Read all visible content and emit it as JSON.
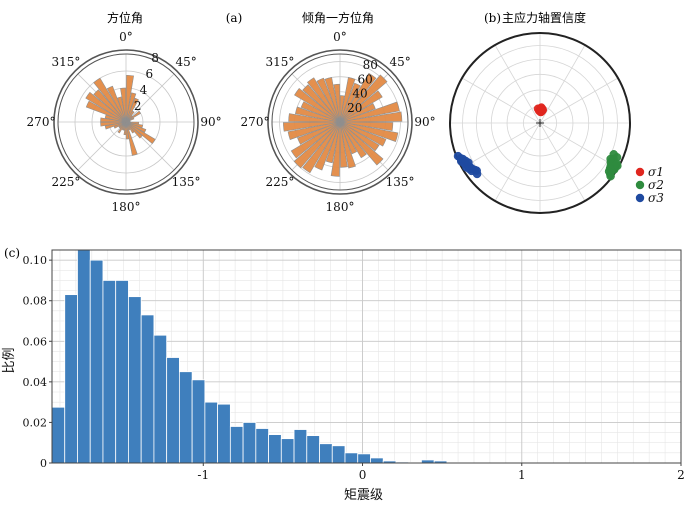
{
  "panels": {
    "a": {
      "label": "(a)",
      "left_title": "方位角",
      "right_title": "倾角一方位角"
    },
    "b": {
      "label": "(b)",
      "title": "主应力轴置信度"
    },
    "c": {
      "label": "(c)"
    }
  },
  "chart_data": [
    {
      "id": "azimuth-rose",
      "type": "bar",
      "subtype": "polar-rose",
      "title": "方位角",
      "angle_ticks": [
        "0°",
        "45°",
        "90°",
        "135°",
        "180°",
        "225°",
        "270°",
        "315°"
      ],
      "radial_ticks": [
        2,
        4,
        6,
        8
      ],
      "rlim": [
        0,
        8
      ],
      "bin_width_deg": 10,
      "bins_deg": [
        0,
        10,
        20,
        30,
        40,
        50,
        60,
        70,
        80,
        90,
        100,
        110,
        120,
        130,
        140,
        150,
        160,
        170,
        180,
        190,
        200,
        210,
        220,
        230,
        240,
        250,
        260,
        270,
        280,
        290,
        300,
        310,
        320,
        330,
        340,
        350
      ],
      "values": [
        5.5,
        3.5,
        3.0,
        1.5,
        1.0,
        2.0,
        1.0,
        0.5,
        0.5,
        1.5,
        2.0,
        2.5,
        4.0,
        2.5,
        1.5,
        1.0,
        4.0,
        2.0,
        1.5,
        1.0,
        1.0,
        1.5,
        1.0,
        1.0,
        1.5,
        2.5,
        3.0,
        3.0,
        2.5,
        5.0,
        5.5,
        5.0,
        6.0,
        4.5,
        3.0,
        4.0
      ],
      "bar_color": "#e38a45",
      "grid": true
    },
    {
      "id": "dip-azimuth-rose",
      "type": "bar",
      "subtype": "polar-rose",
      "title": "倾角一方位角",
      "angle_ticks": [
        "0°",
        "45°",
        "90°",
        "135°",
        "180°",
        "225°",
        "270°",
        "315°"
      ],
      "radial_ticks": [
        20,
        40,
        60,
        80
      ],
      "rlim": [
        0,
        90
      ],
      "bin_width_deg": 10,
      "bins_deg": [
        0,
        10,
        20,
        30,
        40,
        50,
        60,
        70,
        80,
        90,
        100,
        110,
        120,
        130,
        140,
        150,
        160,
        170,
        180,
        190,
        200,
        210,
        220,
        230,
        240,
        250,
        260,
        270,
        280,
        290,
        300,
        310,
        320,
        330,
        340,
        350
      ],
      "values": [
        35,
        60,
        55,
        75,
        82,
        65,
        50,
        80,
        82,
        70,
        78,
        65,
        60,
        75,
        55,
        45,
        62,
        60,
        72,
        55,
        68,
        78,
        80,
        75,
        60,
        70,
        75,
        68,
        60,
        55,
        70,
        65,
        68,
        62,
        60,
        50
      ],
      "bar_color": "#e38a45",
      "grid": true
    },
    {
      "id": "principal-stress-confidence",
      "type": "scatter",
      "subtype": "stereonet",
      "title": "主应力轴置信度",
      "legend_placement": "right",
      "series": [
        {
          "name": "σ1",
          "color": "#e0261f",
          "points": [
            [
              0,
              78
            ],
            [
              4,
              78
            ],
            [
              8,
              78
            ],
            [
              10,
              79
            ],
            [
              2,
              80
            ],
            [
              6,
              80
            ],
            [
              12,
              78
            ],
            [
              356,
              79
            ],
            [
              352,
              77
            ],
            [
              5,
              76
            ],
            [
              9,
              77
            ],
            [
              3,
              77
            ]
          ]
        },
        {
          "name": "σ2",
          "color": "#2e8b3e",
          "points": [
            [
              122,
              3
            ],
            [
              124,
              5
            ],
            [
              120,
              6
            ],
            [
              118,
              4
            ],
            [
              126,
              4
            ],
            [
              121,
              9
            ],
            [
              119,
              11
            ],
            [
              116,
              10
            ],
            [
              123,
              8
            ],
            [
              114,
              7
            ],
            [
              117,
              13
            ],
            [
              125,
              7
            ],
            [
              113,
              12
            ],
            [
              127,
              2
            ],
            [
              119,
              2
            ]
          ]
        },
        {
          "name": "σ3",
          "color": "#1f4aa0",
          "points": [
            [
              244,
              3
            ],
            [
              242,
              5
            ],
            [
              240,
              7
            ],
            [
              238,
              9
            ],
            [
              236,
              10
            ],
            [
              234,
              12
            ],
            [
              233,
              13
            ],
            [
              246,
              4
            ],
            [
              248,
              2
            ],
            [
              239,
              5
            ],
            [
              237,
              7
            ],
            [
              235,
              8
            ],
            [
              241,
              10
            ],
            [
              243,
              8
            ],
            [
              231,
              11
            ],
            [
              245,
              6
            ]
          ]
        }
      ]
    },
    {
      "id": "magnitude-histogram",
      "type": "bar",
      "subtype": "histogram",
      "xlabel": "矩震级",
      "ylabel": "比例",
      "xlim": [
        -1.95,
        2.0
      ],
      "ylim": [
        0,
        0.105
      ],
      "xticks": [
        -1,
        0,
        1,
        2
      ],
      "xtick_labels": [
        "-1",
        "0",
        "1",
        "2"
      ],
      "yticks": [
        0,
        0.02,
        0.04,
        0.06,
        0.08,
        0.1
      ],
      "ytick_labels": [
        "0",
        "0.02",
        "0.04",
        "0.06",
        "0.08",
        "0.10"
      ],
      "bin_width": 0.08,
      "bin_starts": [
        -1.95,
        -1.87,
        -1.79,
        -1.71,
        -1.63,
        -1.55,
        -1.47,
        -1.39,
        -1.31,
        -1.23,
        -1.15,
        -1.07,
        -0.99,
        -0.91,
        -0.83,
        -0.75,
        -0.67,
        -0.59,
        -0.51,
        -0.43,
        -0.35,
        -0.27,
        -0.19,
        -0.11,
        -0.03,
        0.05,
        0.13,
        0.21,
        0.29,
        0.37,
        0.45,
        0.53
      ],
      "values": [
        0.0275,
        0.083,
        0.105,
        0.1,
        0.09,
        0.09,
        0.082,
        0.073,
        0.063,
        0.052,
        0.045,
        0.041,
        0.03,
        0.029,
        0.018,
        0.02,
        0.017,
        0.014,
        0.012,
        0.0165,
        0.0135,
        0.0095,
        0.0085,
        0.005,
        0.0045,
        0.0025,
        0.001,
        0.0005,
        0.0003,
        0.0015,
        0.001,
        0.0003
      ],
      "bar_color": "#3f7fbd",
      "grid": true
    }
  ]
}
